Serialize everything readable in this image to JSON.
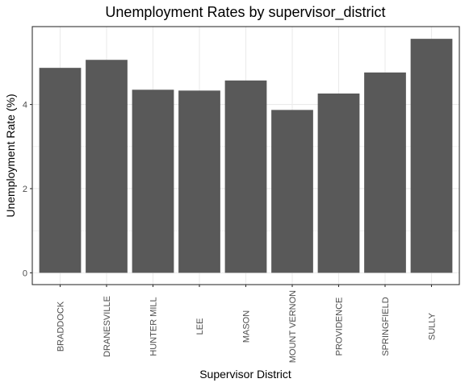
{
  "chart_data": {
    "type": "bar",
    "title": "Unemployment Rates by supervisor_district",
    "xlabel": "Supervisor District",
    "ylabel": "Unemployment Rate (%)",
    "categories": [
      "BRADDOCK",
      "DRANESVILLE",
      "HUNTER MILL",
      "LEE",
      "MASON",
      "MOUNT VERNON",
      "PROVIDENCE",
      "SPRINGFIELD",
      "SULLY"
    ],
    "values": [
      4.87,
      5.06,
      4.35,
      4.33,
      4.57,
      3.87,
      4.26,
      4.76,
      5.56
    ],
    "ylim": [
      -0.28,
      5.85
    ],
    "yticks": [
      0,
      2,
      4
    ],
    "grid": true,
    "legend": "none",
    "colors": {
      "bar": "#595959",
      "panel_border": "#333333",
      "grid": "#ebebeb",
      "tick_text": "#4d4d4d"
    }
  }
}
